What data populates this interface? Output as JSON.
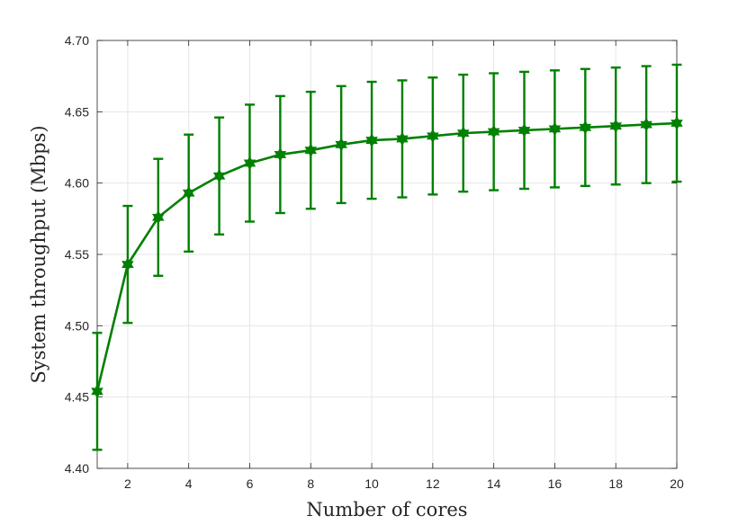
{
  "chart_data": {
    "type": "line",
    "title": "",
    "xlabel": "Number of cores",
    "ylabel": "System throughput (Mbps)",
    "xlim": [
      1,
      20
    ],
    "ylim": [
      4.4,
      4.7
    ],
    "xticks": [
      2,
      4,
      6,
      8,
      10,
      12,
      14,
      16,
      18,
      20
    ],
    "yticks": [
      "4.40",
      "4.45",
      "4.50",
      "4.55",
      "4.60",
      "4.65",
      "4.70"
    ],
    "grid": true,
    "marker": "hexagram",
    "color": "#008000",
    "series": [
      {
        "x": [
          1,
          2,
          3,
          4,
          5,
          6,
          7,
          8,
          9,
          10,
          11,
          12,
          13,
          14,
          15,
          16,
          17,
          18,
          19,
          20
        ],
        "y": [
          4.454,
          4.543,
          4.576,
          4.593,
          4.605,
          4.614,
          4.62,
          4.623,
          4.627,
          4.63,
          4.631,
          4.633,
          4.635,
          4.636,
          4.637,
          4.638,
          4.639,
          4.64,
          4.641,
          4.642
        ],
        "error": [
          0.041,
          0.041,
          0.041,
          0.041,
          0.041,
          0.041,
          0.041,
          0.041,
          0.041,
          0.041,
          0.041,
          0.041,
          0.041,
          0.041,
          0.041,
          0.041,
          0.041,
          0.041,
          0.041,
          0.041
        ]
      }
    ]
  }
}
